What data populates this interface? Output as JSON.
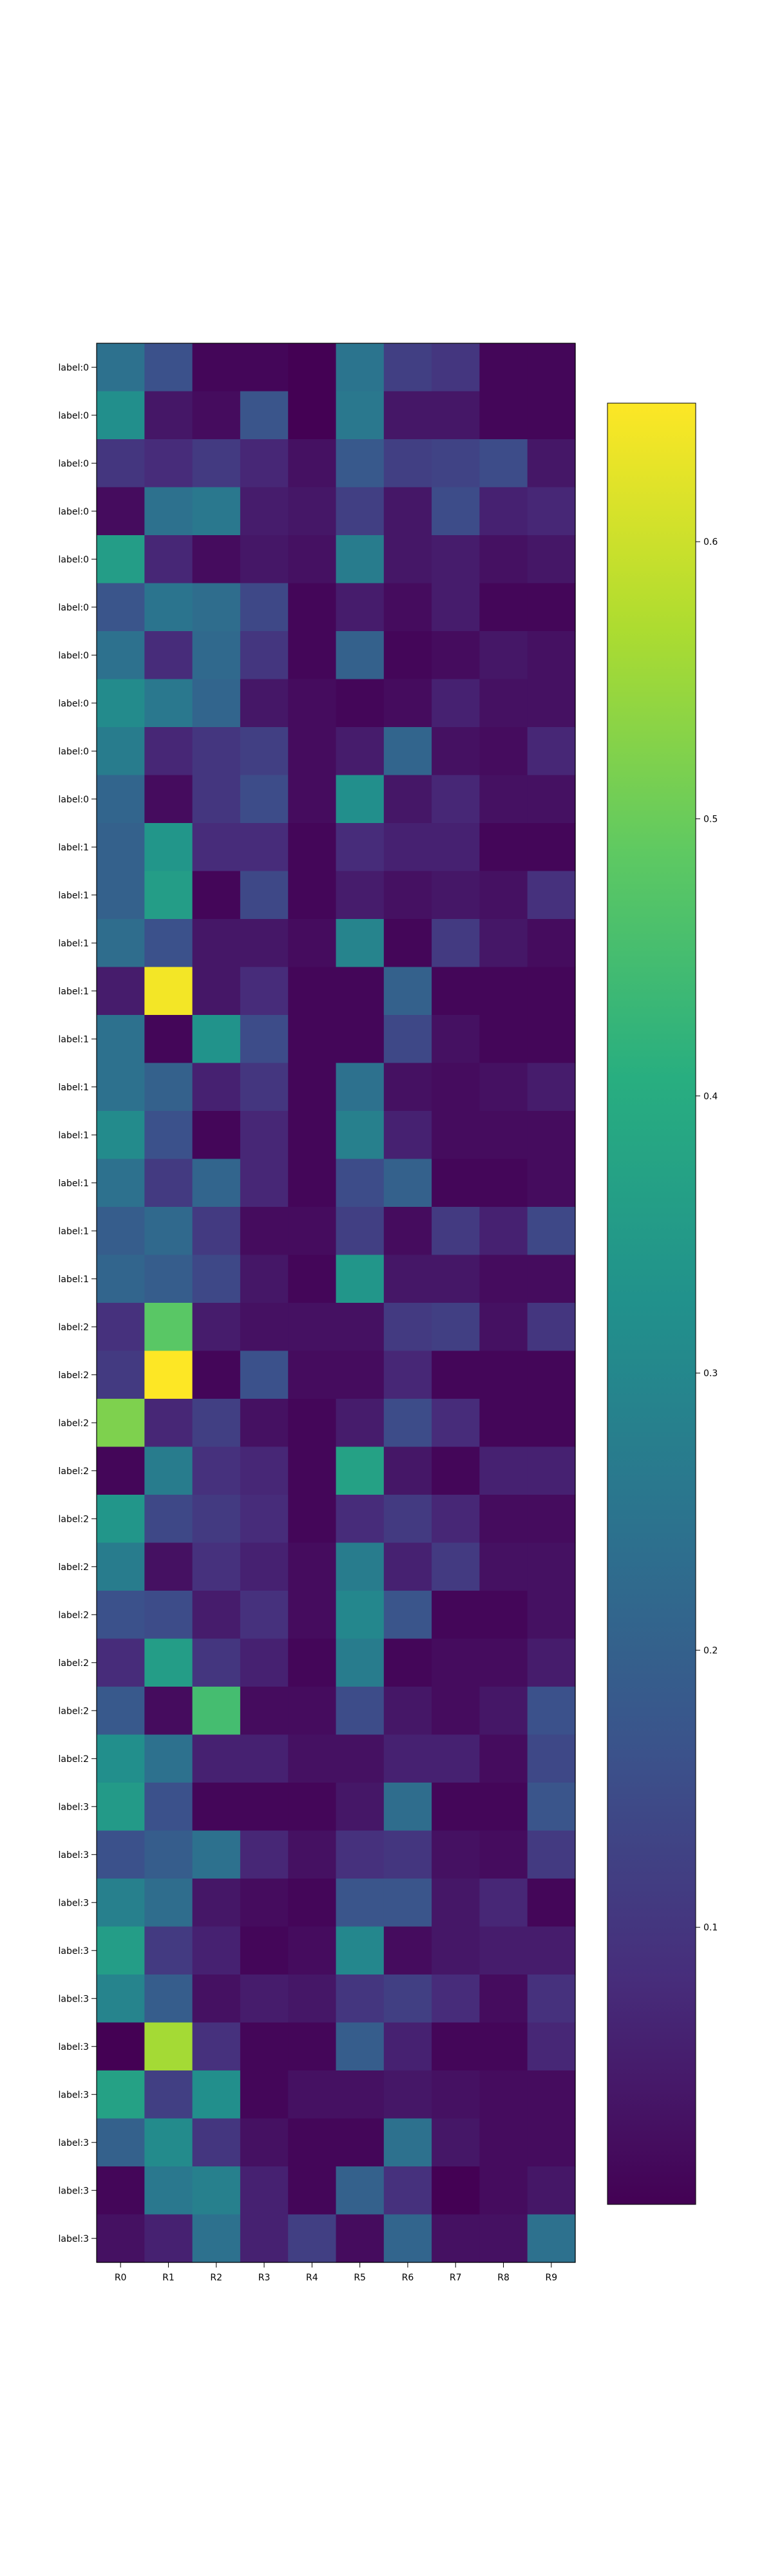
{
  "chart_data": {
    "type": "heatmap",
    "title": "",
    "xlabel": "",
    "ylabel": "",
    "colormap": "viridis",
    "color_range": [
      0.0,
      0.65
    ],
    "colorbar_ticks": [
      "0.1",
      "0.2",
      "0.3",
      "0.4",
      "0.5",
      "0.6"
    ],
    "colorbar_tick_values": [
      0.1,
      0.2,
      0.3,
      0.4,
      0.5,
      0.6
    ],
    "x_categories": [
      "R0",
      "R1",
      "R2",
      "R3",
      "R4",
      "R5",
      "R6",
      "R7",
      "R8",
      "R9"
    ],
    "y_categories": [
      "label:0",
      "label:0",
      "label:0",
      "label:0",
      "label:0",
      "label:0",
      "label:0",
      "label:0",
      "label:0",
      "label:0",
      "label:1",
      "label:1",
      "label:1",
      "label:1",
      "label:1",
      "label:1",
      "label:1",
      "label:1",
      "label:1",
      "label:1",
      "label:2",
      "label:2",
      "label:2",
      "label:2",
      "label:2",
      "label:2",
      "label:2",
      "label:2",
      "label:2",
      "label:2",
      "label:3",
      "label:3",
      "label:3",
      "label:3",
      "label:3",
      "label:3",
      "label:3",
      "label:3",
      "label:3",
      "label:3"
    ],
    "values": [
      [
        0.24,
        0.16,
        0.01,
        0.01,
        0.0,
        0.25,
        0.12,
        0.1,
        0.01,
        0.01
      ],
      [
        0.32,
        0.04,
        0.02,
        0.17,
        0.0,
        0.26,
        0.04,
        0.04,
        0.01,
        0.01
      ],
      [
        0.1,
        0.08,
        0.11,
        0.07,
        0.03,
        0.18,
        0.12,
        0.13,
        0.15,
        0.04
      ],
      [
        0.02,
        0.24,
        0.26,
        0.05,
        0.04,
        0.12,
        0.04,
        0.15,
        0.06,
        0.07
      ],
      [
        0.36,
        0.07,
        0.02,
        0.04,
        0.03,
        0.27,
        0.04,
        0.05,
        0.03,
        0.04
      ],
      [
        0.17,
        0.25,
        0.23,
        0.14,
        0.01,
        0.05,
        0.02,
        0.05,
        0.01,
        0.01
      ],
      [
        0.24,
        0.08,
        0.22,
        0.1,
        0.01,
        0.2,
        0.01,
        0.02,
        0.04,
        0.03
      ],
      [
        0.31,
        0.26,
        0.21,
        0.04,
        0.02,
        0.01,
        0.02,
        0.06,
        0.03,
        0.03
      ],
      [
        0.27,
        0.07,
        0.1,
        0.12,
        0.02,
        0.05,
        0.21,
        0.03,
        0.02,
        0.07
      ],
      [
        0.21,
        0.02,
        0.1,
        0.15,
        0.02,
        0.32,
        0.04,
        0.07,
        0.03,
        0.03
      ],
      [
        0.2,
        0.34,
        0.08,
        0.08,
        0.01,
        0.08,
        0.06,
        0.06,
        0.01,
        0.01
      ],
      [
        0.2,
        0.36,
        0.01,
        0.14,
        0.01,
        0.05,
        0.03,
        0.04,
        0.03,
        0.09
      ],
      [
        0.23,
        0.16,
        0.04,
        0.04,
        0.02,
        0.29,
        0.01,
        0.11,
        0.04,
        0.02
      ],
      [
        0.05,
        0.64,
        0.04,
        0.08,
        0.01,
        0.01,
        0.2,
        0.01,
        0.01,
        0.01
      ],
      [
        0.24,
        0.01,
        0.33,
        0.15,
        0.01,
        0.01,
        0.14,
        0.03,
        0.01,
        0.01
      ],
      [
        0.24,
        0.2,
        0.06,
        0.1,
        0.01,
        0.24,
        0.03,
        0.02,
        0.03,
        0.05
      ],
      [
        0.31,
        0.16,
        0.01,
        0.07,
        0.01,
        0.28,
        0.06,
        0.02,
        0.02,
        0.02
      ],
      [
        0.24,
        0.11,
        0.21,
        0.07,
        0.01,
        0.15,
        0.2,
        0.01,
        0.01,
        0.02
      ],
      [
        0.19,
        0.22,
        0.11,
        0.02,
        0.02,
        0.12,
        0.02,
        0.11,
        0.06,
        0.14
      ],
      [
        0.21,
        0.19,
        0.14,
        0.04,
        0.01,
        0.34,
        0.04,
        0.04,
        0.02,
        0.02
      ],
      [
        0.09,
        0.48,
        0.05,
        0.03,
        0.03,
        0.03,
        0.11,
        0.12,
        0.03,
        0.1
      ],
      [
        0.11,
        0.66,
        0.01,
        0.16,
        0.02,
        0.02,
        0.07,
        0.01,
        0.01,
        0.01
      ],
      [
        0.52,
        0.07,
        0.12,
        0.03,
        0.01,
        0.05,
        0.15,
        0.08,
        0.01,
        0.01
      ],
      [
        0.01,
        0.27,
        0.09,
        0.07,
        0.01,
        0.37,
        0.04,
        0.01,
        0.06,
        0.06
      ],
      [
        0.34,
        0.14,
        0.11,
        0.08,
        0.01,
        0.08,
        0.11,
        0.07,
        0.02,
        0.02
      ],
      [
        0.27,
        0.03,
        0.09,
        0.06,
        0.02,
        0.27,
        0.06,
        0.11,
        0.03,
        0.03
      ],
      [
        0.16,
        0.15,
        0.05,
        0.09,
        0.02,
        0.3,
        0.17,
        0.01,
        0.01,
        0.03
      ],
      [
        0.08,
        0.36,
        0.1,
        0.06,
        0.01,
        0.27,
        0.01,
        0.02,
        0.02,
        0.05
      ],
      [
        0.18,
        0.02,
        0.45,
        0.02,
        0.02,
        0.15,
        0.04,
        0.02,
        0.04,
        0.16
      ],
      [
        0.32,
        0.24,
        0.06,
        0.06,
        0.03,
        0.03,
        0.06,
        0.06,
        0.02,
        0.14
      ],
      [
        0.35,
        0.16,
        0.01,
        0.01,
        0.01,
        0.04,
        0.23,
        0.01,
        0.01,
        0.17
      ],
      [
        0.16,
        0.19,
        0.24,
        0.07,
        0.03,
        0.09,
        0.1,
        0.03,
        0.02,
        0.11
      ],
      [
        0.28,
        0.23,
        0.04,
        0.02,
        0.01,
        0.17,
        0.17,
        0.04,
        0.07,
        0.01
      ],
      [
        0.36,
        0.11,
        0.06,
        0.01,
        0.02,
        0.3,
        0.02,
        0.04,
        0.05,
        0.05
      ],
      [
        0.29,
        0.19,
        0.03,
        0.05,
        0.04,
        0.1,
        0.12,
        0.08,
        0.02,
        0.09
      ],
      [
        0.0,
        0.56,
        0.09,
        0.01,
        0.01,
        0.19,
        0.06,
        0.01,
        0.01,
        0.07
      ],
      [
        0.37,
        0.12,
        0.32,
        0.01,
        0.03,
        0.03,
        0.04,
        0.03,
        0.02,
        0.02
      ],
      [
        0.2,
        0.31,
        0.1,
        0.03,
        0.01,
        0.01,
        0.24,
        0.04,
        0.02,
        0.02
      ],
      [
        0.01,
        0.26,
        0.28,
        0.06,
        0.01,
        0.2,
        0.09,
        0.0,
        0.02,
        0.04
      ],
      [
        0.03,
        0.06,
        0.24,
        0.06,
        0.12,
        0.02,
        0.21,
        0.03,
        0.03,
        0.24
      ]
    ]
  }
}
